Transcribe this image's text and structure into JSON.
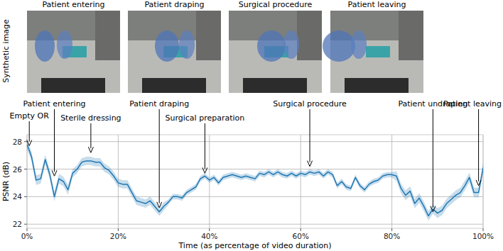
{
  "image_row": {
    "label": "Synthetic image",
    "titles": [
      "Patient entering",
      "Patient draping",
      "Surgical procedure",
      "Patient leaving"
    ]
  },
  "chart_data": {
    "type": "line",
    "x_label": "Time (as percentage of video duration)",
    "y_label": "PSNR (dB)",
    "x": [
      0,
      1,
      2,
      3,
      4,
      5,
      6,
      7,
      8,
      9,
      10,
      11,
      12,
      13,
      14,
      15,
      16,
      17,
      18,
      19,
      20,
      21,
      22,
      23,
      24,
      25,
      26,
      27,
      28,
      29,
      30,
      31,
      32,
      33,
      34,
      35,
      36,
      37,
      38,
      39,
      40,
      41,
      42,
      43,
      44,
      45,
      46,
      47,
      48,
      49,
      50,
      51,
      52,
      53,
      54,
      55,
      56,
      57,
      58,
      59,
      60,
      61,
      62,
      63,
      64,
      65,
      66,
      67,
      68,
      69,
      70,
      71,
      72,
      73,
      74,
      75,
      76,
      77,
      78,
      79,
      80,
      81,
      82,
      83,
      84,
      85,
      86,
      87,
      88,
      89,
      90,
      91,
      92,
      93,
      94,
      95,
      96,
      97,
      98,
      99,
      100
    ],
    "series": [
      {
        "color": "#1f77b4",
        "values": [
          27.8,
          26.9,
          25.2,
          25.3,
          26.7,
          25.6,
          24.0,
          25.3,
          25.1,
          24.5,
          25.7,
          26.0,
          26.5,
          26.6,
          26.6,
          26.5,
          26.5,
          26.1,
          25.9,
          25.5,
          25.0,
          24.9,
          24.9,
          24.3,
          23.7,
          23.6,
          23.5,
          23.7,
          23.3,
          22.9,
          23.3,
          23.6,
          24.0,
          24.0,
          23.9,
          24.3,
          24.5,
          24.7,
          25.3,
          25.5,
          25.2,
          25.4,
          25.0,
          25.4,
          25.5,
          25.6,
          25.5,
          25.4,
          25.5,
          25.4,
          25.3,
          25.7,
          25.6,
          25.8,
          25.6,
          25.8,
          25.6,
          25.5,
          25.7,
          25.5,
          25.7,
          25.6,
          25.8,
          25.7,
          25.8,
          25.5,
          25.8,
          25.6,
          24.8,
          25.1,
          24.7,
          24.6,
          25.4,
          24.8,
          24.5,
          24.9,
          25.1,
          25.2,
          25.5,
          25.6,
          25.6,
          25.5,
          24.6,
          24.1,
          24.4,
          23.5,
          23.9,
          23.3,
          22.6,
          23.1,
          22.8,
          23.0,
          23.5,
          23.8,
          24.1,
          24.3,
          24.8,
          25.4,
          24.3,
          24.3,
          26.1
        ],
        "error": [
          0.35,
          0.35,
          0.35,
          0.35,
          0.35,
          0.35,
          0.35,
          0.35,
          0.35,
          0.35,
          0.3,
          0.3,
          0.3,
          0.3,
          0.3,
          0.3,
          0.3,
          0.3,
          0.3,
          0.3,
          0.3,
          0.3,
          0.3,
          0.3,
          0.3,
          0.3,
          0.3,
          0.3,
          0.3,
          0.3,
          0.3,
          0.2,
          0.2,
          0.2,
          0.2,
          0.2,
          0.2,
          0.2,
          0.2,
          0.2,
          0.2,
          0.2,
          0.2,
          0.2,
          0.2,
          0.2,
          0.2,
          0.2,
          0.2,
          0.2,
          0.2,
          0.2,
          0.2,
          0.2,
          0.2,
          0.2,
          0.2,
          0.2,
          0.2,
          0.2,
          0.2,
          0.2,
          0.2,
          0.2,
          0.2,
          0.2,
          0.2,
          0.2,
          0.2,
          0.2,
          0.2,
          0.2,
          0.2,
          0.2,
          0.2,
          0.2,
          0.2,
          0.2,
          0.2,
          0.2,
          0.2,
          0.35,
          0.35,
          0.35,
          0.35,
          0.35,
          0.35,
          0.35,
          0.35,
          0.35,
          0.35,
          0.35,
          0.35,
          0.35,
          0.35,
          0.35,
          0.35,
          0.35,
          0.35,
          0.35,
          0.35
        ]
      }
    ],
    "xlim": [
      0,
      100
    ],
    "xticks": [
      {
        "value": 0,
        "label": "0%"
      },
      {
        "value": 20,
        "label": "20%"
      },
      {
        "value": 40,
        "label": "40%"
      },
      {
        "value": 60,
        "label": "60%"
      },
      {
        "value": 80,
        "label": "80%"
      },
      {
        "value": 100,
        "label": "100%"
      }
    ],
    "ylim": [
      21.7,
      28.5
    ],
    "yticks": [
      22,
      24,
      26,
      28
    ],
    "grid": true,
    "annotations": [
      {
        "text": "Empty OR",
        "x": 0.5,
        "y": 27.7
      },
      {
        "text": "Patient entering",
        "x": 6,
        "y": 25.5
      },
      {
        "text": "Sterile dressing",
        "x": 14,
        "y": 27.2
      },
      {
        "text": "Patient draping",
        "x": 29,
        "y": 23.2
      },
      {
        "text": "Surgical preparation",
        "x": 39,
        "y": 25.7
      },
      {
        "text": "Surgical procedure",
        "x": 62,
        "y": 26.2
      },
      {
        "text": "Patient undraping",
        "x": 89,
        "y": 22.9
      },
      {
        "text": "Patient leaving",
        "x": 99,
        "y": 24.8
      }
    ]
  }
}
